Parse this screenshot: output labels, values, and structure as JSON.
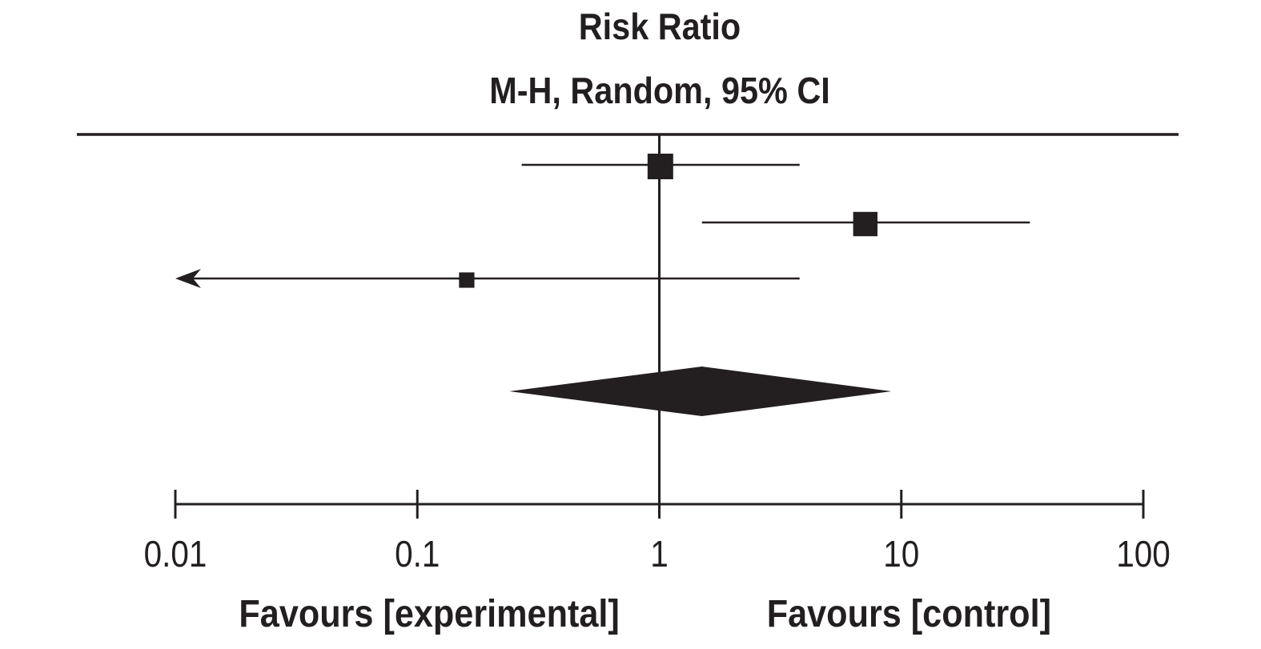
{
  "header": {
    "title": "Risk Ratio",
    "subtitle": "M-H, Random, 95% CI"
  },
  "chart_data": {
    "type": "forest",
    "title": "Risk Ratio",
    "subtitle": "M-H, Random, 95% CI",
    "x_scale": "log",
    "xlim": [
      0.01,
      100
    ],
    "x_ticks": [
      {
        "value": 0.01,
        "label": "0.01"
      },
      {
        "value": 0.1,
        "label": "0.1"
      },
      {
        "value": 1,
        "label": "1"
      },
      {
        "value": 10,
        "label": "10"
      },
      {
        "value": 100,
        "label": "100"
      }
    ],
    "null_line": 1,
    "studies": [
      {
        "estimate": 1.01,
        "ci_low": 0.27,
        "ci_high": 3.8,
        "weight": 1.0,
        "arrow_left": false
      },
      {
        "estimate": 7.1,
        "ci_low": 1.5,
        "ci_high": 34.0,
        "weight": 0.95,
        "arrow_left": false
      },
      {
        "estimate": 0.16,
        "ci_low": 0.01,
        "ci_high": 3.8,
        "weight": 0.6,
        "arrow_left": true
      }
    ],
    "pooled": {
      "estimate": 1.5,
      "ci_low": 0.24,
      "ci_high": 9.1
    },
    "favours_left": "Favours [experimental]",
    "favours_right": "Favours [control]",
    "colors": {
      "ink": "#231f20",
      "background": "#ffffff"
    }
  }
}
